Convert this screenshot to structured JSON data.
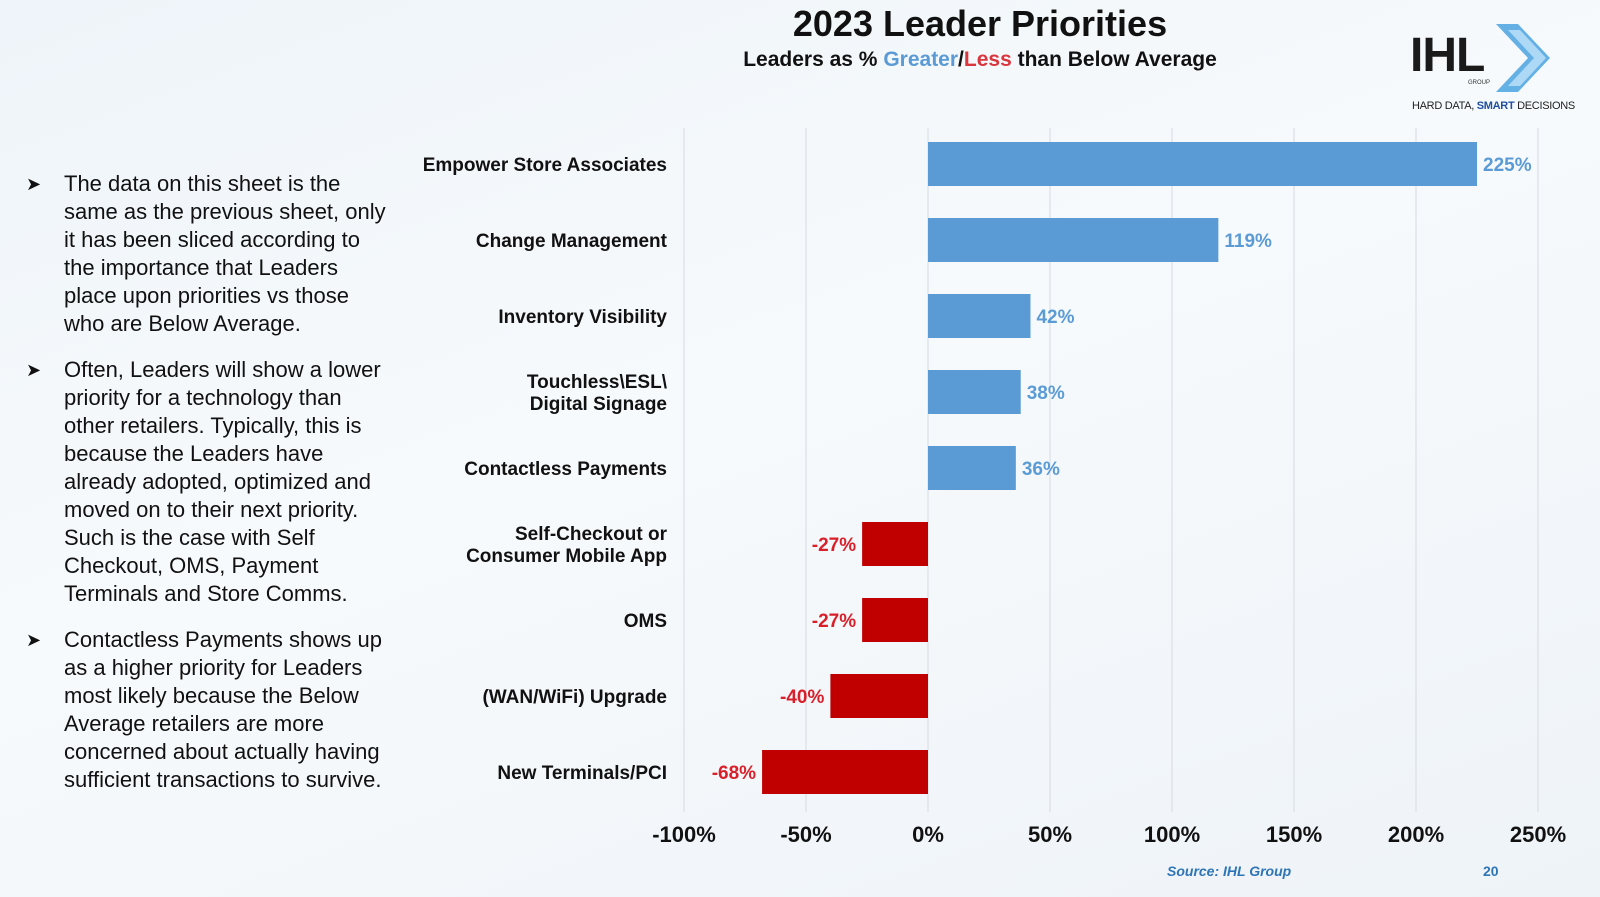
{
  "slide": {
    "title": "2023 Leader Priorities",
    "subtitle_prefix": "Leaders as % ",
    "subtitle_greater": "Greater",
    "subtitle_sep": "/",
    "subtitle_less": "Less",
    "subtitle_suffix": " than Below Average",
    "source": "Source: IHL Group",
    "page_number": "20"
  },
  "logo": {
    "text": "IHL",
    "group": "GROUP",
    "tagline_a": "HARD DATA, ",
    "tagline_b": "SMART",
    "tagline_c": " DECISIONS"
  },
  "bullets": [
    "The data on this sheet is the same as the previous sheet, only it has been sliced according to the importance that Leaders place upon priorities vs those who are Below Average.",
    "Often, Leaders will show a lower priority for a technology than other retailers. Typically, this is because the Leaders have already adopted, optimized and moved on to their next priority. Such is the case with Self Checkout, OMS, Payment Terminals and Store Comms.",
    "Contactless Payments shows up as a higher priority for Leaders most likely because the Below Average retailers are more concerned about actually having sufficient transactions to survive."
  ],
  "colors": {
    "positive": "#5b9bd5",
    "negative": "#c00000",
    "positive_label": "#5b9bd5",
    "negative_label": "#d9202a"
  },
  "chart_data": {
    "type": "bar",
    "orientation": "horizontal",
    "categories": [
      [
        "Empower Store Associates"
      ],
      [
        "Change Management"
      ],
      [
        "Inventory Visibility"
      ],
      [
        "Touchless\\ESL\\",
        "Digital Signage"
      ],
      [
        "Contactless Payments"
      ],
      [
        "Self-Checkout or",
        "Consumer Mobile App"
      ],
      [
        "OMS"
      ],
      [
        "(WAN/WiFi) Upgrade"
      ],
      [
        "New Terminals/PCI"
      ]
    ],
    "values": [
      225,
      119,
      42,
      38,
      36,
      -27,
      -27,
      -40,
      -68
    ],
    "data_labels": [
      "225%",
      "119%",
      "42%",
      "38%",
      "36%",
      "-27%",
      "-27%",
      "-40%",
      "-68%"
    ],
    "xlim": [
      -100,
      250
    ],
    "xticks": [
      -100,
      -50,
      0,
      50,
      100,
      150,
      200,
      250
    ],
    "xtick_labels": [
      "-100%",
      "-50%",
      "0%",
      "50%",
      "100%",
      "150%",
      "200%",
      "250%"
    ],
    "grid": "vertical"
  }
}
